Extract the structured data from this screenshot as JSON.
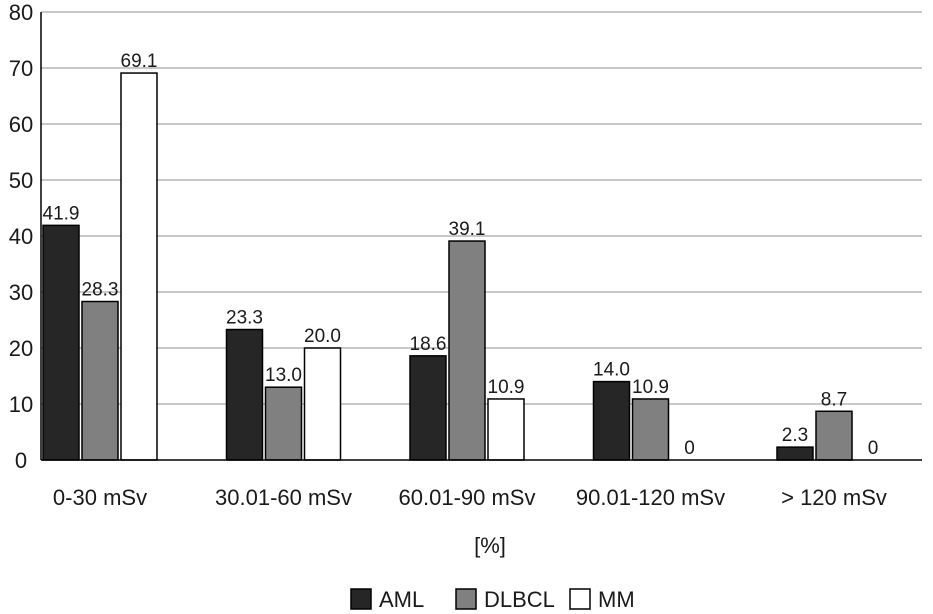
{
  "chart_data": {
    "type": "bar",
    "categories": [
      "0-30 mSv",
      "30.01-60 mSv",
      "60.01-90 mSv",
      "90.01-120 mSv",
      "> 120 mSv"
    ],
    "series": [
      {
        "name": "AML",
        "values": [
          41.9,
          23.3,
          18.6,
          14.0,
          2.3
        ],
        "labels": [
          "41.9",
          "23.3",
          "18.6",
          "14.0",
          "2.3"
        ],
        "color": "#262626"
      },
      {
        "name": "DLBCL",
        "values": [
          28.3,
          13.0,
          39.1,
          10.9,
          8.7
        ],
        "labels": [
          "28.3",
          "13.0",
          "39.1",
          "10.9",
          "8.7"
        ],
        "color": "#808080"
      },
      {
        "name": "MM",
        "values": [
          69.1,
          20.0,
          10.9,
          0,
          0
        ],
        "labels": [
          "69.1",
          "20.0",
          "10.9",
          "0",
          "0"
        ],
        "color": "#ffffff"
      }
    ],
    "yticks": [
      "0",
      "10",
      "20",
      "30",
      "40",
      "50",
      "60",
      "70",
      "80"
    ],
    "ylim": [
      0,
      80
    ],
    "xlabel": "[%]",
    "ylabel": "",
    "title": "",
    "grid": true,
    "legend_position": "bottom-center"
  }
}
